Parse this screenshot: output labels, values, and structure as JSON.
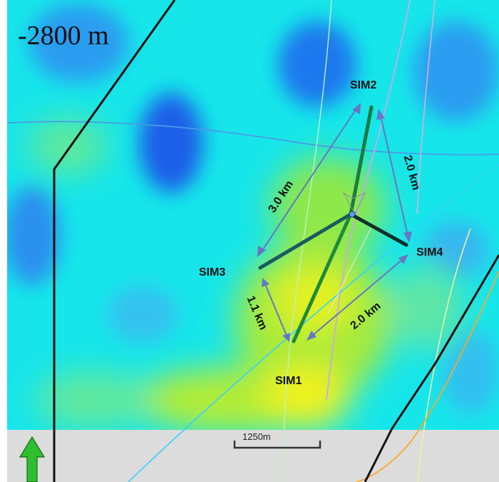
{
  "map": {
    "depth_label": "-2800 m",
    "scale_bar_label": "1250m",
    "colors": {
      "background": "#16e6ea",
      "low_blue": "#1a6ef0",
      "mid_cyan": "#22e8e8",
      "green": "#7be84a",
      "yellow": "#f4f41a",
      "panel_gray": "#dcdcdc",
      "arrow": "#5a78c8",
      "wellbore": "#1e7a3e",
      "north_arrow": "#2ebf2e"
    },
    "wells": [
      {
        "label": "SIM1"
      },
      {
        "label": "SIM2"
      },
      {
        "label": "SIM3"
      },
      {
        "label": "SIM4"
      }
    ],
    "distances": [
      {
        "label": "3.0 km"
      },
      {
        "label": "2.0 km"
      },
      {
        "label": "1.1 km"
      },
      {
        "label": "2.0 km"
      }
    ],
    "north_arrow_icon": "north-arrow-icon"
  }
}
